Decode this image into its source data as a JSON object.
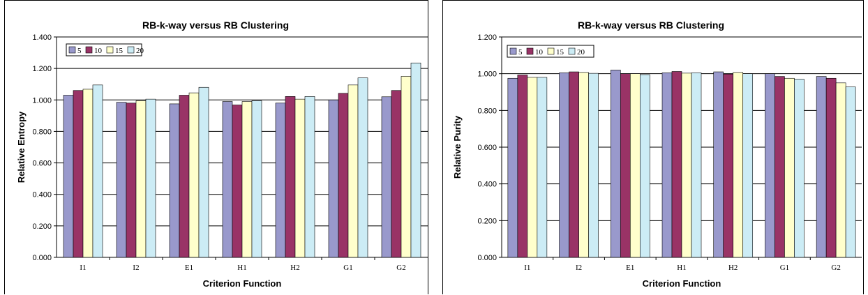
{
  "chart_data": [
    {
      "type": "bar",
      "title": "RB-k-way versus RB Clustering",
      "xlabel": "Criterion Function",
      "ylabel": "Relative Entropy",
      "ylim": [
        0,
        1.4
      ],
      "yticks": [
        "0.000",
        "0.200",
        "0.400",
        "0.600",
        "0.800",
        "1.000",
        "1.200",
        "1.400"
      ],
      "grid": "horizontal",
      "legend_position": "top-left",
      "categories": [
        "I1",
        "I2",
        "E1",
        "H1",
        "H2",
        "G1",
        "G2"
      ],
      "series": [
        {
          "name": "5",
          "color": "#9999cc",
          "values": [
            1.03,
            0.985,
            0.975,
            0.99,
            0.98,
            1.0,
            1.02
          ]
        },
        {
          "name": "10",
          "color": "#993366",
          "values": [
            1.06,
            0.98,
            1.03,
            0.968,
            1.022,
            1.042,
            1.06
          ]
        },
        {
          "name": "15",
          "color": "#ffffcc",
          "values": [
            1.068,
            0.995,
            1.045,
            0.99,
            1.005,
            1.095,
            1.15
          ]
        },
        {
          "name": "20",
          "color": "#ccecf5",
          "values": [
            1.095,
            1.005,
            1.08,
            0.995,
            1.022,
            1.14,
            1.235
          ]
        }
      ]
    },
    {
      "type": "bar",
      "title": "RB-k-way versus RB Clustering",
      "xlabel": "Criterion Function",
      "ylabel": "Relative Purity",
      "ylim": [
        0,
        1.2
      ],
      "yticks": [
        "0.000",
        "0.200",
        "0.400",
        "0.600",
        "0.800",
        "1.000",
        "1.200"
      ],
      "grid": "horizontal",
      "legend_position": "top-left",
      "categories": [
        "I1",
        "I2",
        "E1",
        "H1",
        "H2",
        "G1",
        "G2"
      ],
      "series": [
        {
          "name": "5",
          "color": "#9999cc",
          "values": [
            0.975,
            1.005,
            1.02,
            1.005,
            1.01,
            1.0,
            0.985
          ]
        },
        {
          "name": "10",
          "color": "#993366",
          "values": [
            0.993,
            1.01,
            1.0,
            1.012,
            0.998,
            0.985,
            0.975
          ]
        },
        {
          "name": "15",
          "color": "#ffffcc",
          "values": [
            0.98,
            1.007,
            1.0,
            1.003,
            1.007,
            0.975,
            0.95
          ]
        },
        {
          "name": "20",
          "color": "#ccecf5",
          "values": [
            0.98,
            1.002,
            0.995,
            1.005,
            1.0,
            0.97,
            0.928
          ]
        }
      ]
    }
  ]
}
